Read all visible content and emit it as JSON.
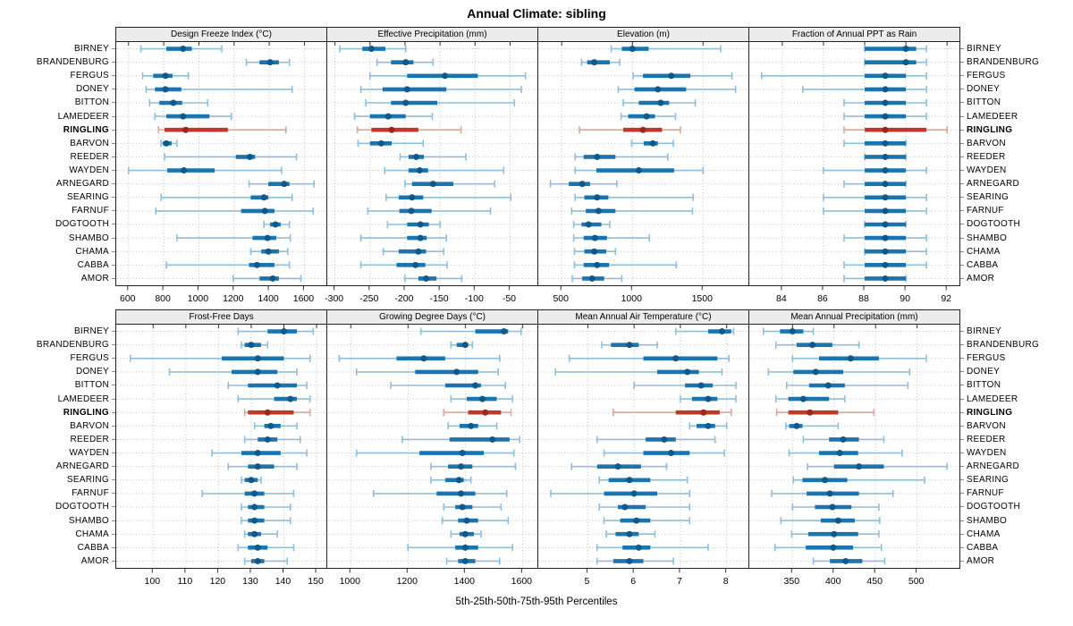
{
  "title": "Annual Climate: sibling",
  "caption": "5th-25th-50th-75th-95th Percentiles",
  "colors": {
    "normal": "#1b74ae",
    "normal_light": "#8fbedb",
    "normal_dot": "#11588a",
    "highlight": "#c0382c",
    "highlight_light": "#e0a49b",
    "highlight_dot": "#9c271d",
    "grid": "#c3c3c3",
    "panel_border": "#222222",
    "strip_bg": "#ececec",
    "tick": "#333333"
  },
  "chart_data": {
    "type": "scatter",
    "subtype": "percentile-range-dotplot",
    "title": "Annual Climate: sibling",
    "caption": "5th-25th-50th-75th-95th Percentiles",
    "percentile_labels": [
      "5th",
      "25th",
      "50th",
      "75th",
      "95th"
    ],
    "legend_position": "none",
    "grid": "dotted",
    "highlight_station": "RINGLING",
    "stations": [
      "BIRNEY",
      "BRANDENBURG",
      "FERGUS",
      "DONEY",
      "BITTON",
      "LAMEDEER",
      "RINGLING",
      "BARVON",
      "REEDER",
      "WAYDEN",
      "ARNEGARD",
      "SEARING",
      "FARNUF",
      "DOGTOOTH",
      "SHAMBO",
      "CHAMA",
      "CABBA",
      "AMOR"
    ],
    "panels": [
      {
        "title": "Design Freeze Index (°C)",
        "grid_row": "top",
        "xlim": [
          530,
          1725
        ],
        "ticks": [
          600,
          800,
          1000,
          1200,
          1400,
          1600
        ],
        "values": [
          [
            670,
            815,
            910,
            960,
            1130
          ],
          [
            1270,
            1345,
            1405,
            1455,
            1515
          ],
          [
            680,
            740,
            810,
            850,
            940
          ],
          [
            700,
            750,
            810,
            900,
            1530
          ],
          [
            720,
            775,
            855,
            905,
            1050
          ],
          [
            750,
            815,
            910,
            1060,
            1185
          ],
          [
            770,
            805,
            925,
            1165,
            1495
          ],
          [
            785,
            795,
            815,
            845,
            875
          ],
          [
            805,
            1210,
            1290,
            1320,
            1555
          ],
          [
            600,
            820,
            915,
            1090,
            1470
          ],
          [
            1285,
            1395,
            1485,
            1515,
            1655
          ],
          [
            785,
            1295,
            1370,
            1395,
            1530
          ],
          [
            755,
            1240,
            1375,
            1430,
            1650
          ],
          [
            1370,
            1405,
            1435,
            1465,
            1515
          ],
          [
            875,
            1305,
            1390,
            1440,
            1520
          ],
          [
            1295,
            1355,
            1395,
            1455,
            1505
          ],
          [
            815,
            1285,
            1330,
            1430,
            1515
          ],
          [
            1195,
            1345,
            1420,
            1455,
            1580
          ]
        ]
      },
      {
        "title": "Effective Precipitation (mm)",
        "grid_row": "top",
        "xlim": [
          -311,
          -11
        ],
        "ticks": [
          -300,
          -250,
          -200,
          -150,
          -100,
          -50
        ],
        "values": [
          [
            -293,
            -261,
            -248,
            -228,
            -199
          ],
          [
            -240,
            -220,
            -199,
            -188,
            -160
          ],
          [
            -250,
            -197,
            -143,
            -96,
            -28
          ],
          [
            -263,
            -232,
            -197,
            -141,
            -34
          ],
          [
            -256,
            -220,
            -199,
            -154,
            -44
          ],
          [
            -272,
            -250,
            -224,
            -199,
            -161
          ],
          [
            -268,
            -248,
            -219,
            -181,
            -120
          ],
          [
            -267,
            -250,
            -234,
            -219,
            -174
          ],
          [
            -207,
            -195,
            -184,
            -173,
            -113
          ],
          [
            -229,
            -195,
            -179,
            -167,
            -59
          ],
          [
            -200,
            -190,
            -160,
            -131,
            -72
          ],
          [
            -227,
            -209,
            -190,
            -174,
            -49
          ],
          [
            -253,
            -208,
            -191,
            -162,
            -78
          ],
          [
            -225,
            -197,
            -178,
            -166,
            -150
          ],
          [
            -263,
            -197,
            -178,
            -169,
            -141
          ],
          [
            -231,
            -209,
            -181,
            -170,
            -145
          ],
          [
            -263,
            -212,
            -185,
            -171,
            -140
          ],
          [
            -200,
            -181,
            -170,
            -155,
            -119
          ]
        ]
      },
      {
        "title": "Elevation (m)",
        "grid_row": "top",
        "xlim": [
          334,
          1821
        ],
        "ticks": [
          500,
          1000,
          1500
        ],
        "values": [
          [
            850,
            925,
            1000,
            1115,
            1625
          ],
          [
            640,
            680,
            730,
            840,
            910
          ],
          [
            1005,
            1075,
            1275,
            1410,
            1705
          ],
          [
            900,
            1015,
            1180,
            1380,
            1730
          ],
          [
            935,
            1045,
            1200,
            1260,
            1445
          ],
          [
            920,
            970,
            1100,
            1160,
            1305
          ],
          [
            625,
            935,
            1075,
            1210,
            1340
          ],
          [
            995,
            1080,
            1145,
            1180,
            1290
          ],
          [
            595,
            655,
            750,
            880,
            1250
          ],
          [
            595,
            745,
            1045,
            1295,
            1500
          ],
          [
            420,
            550,
            645,
            700,
            890
          ],
          [
            595,
            660,
            750,
            830,
            1430
          ],
          [
            570,
            670,
            760,
            880,
            1425
          ],
          [
            585,
            640,
            690,
            780,
            840
          ],
          [
            585,
            655,
            735,
            820,
            1120
          ],
          [
            590,
            660,
            730,
            815,
            880
          ],
          [
            590,
            655,
            750,
            835,
            1310
          ],
          [
            575,
            645,
            715,
            800,
            925
          ]
        ]
      },
      {
        "title": "Fraction of Annual PPT as Rain",
        "grid_row": "top",
        "xlim": [
          82.4,
          92.6
        ],
        "ticks": [
          84,
          86,
          88,
          90,
          92
        ],
        "values": [
          [
            88,
            88,
            90,
            90.5,
            91
          ],
          [
            88,
            88,
            90,
            90.5,
            91
          ],
          [
            83,
            88,
            89,
            90,
            91
          ],
          [
            85,
            88,
            89,
            90,
            91
          ],
          [
            87,
            88,
            89,
            90,
            91
          ],
          [
            87,
            88,
            89,
            90,
            91
          ],
          [
            87,
            88,
            89,
            91,
            92
          ],
          [
            87,
            88,
            89,
            90,
            90
          ],
          [
            88,
            88,
            89,
            90,
            90
          ],
          [
            86,
            88,
            89,
            90,
            91
          ],
          [
            87,
            88,
            89,
            90,
            90
          ],
          [
            86,
            88,
            89,
            90,
            91
          ],
          [
            86,
            88,
            89,
            90,
            91
          ],
          [
            88,
            88,
            89,
            90,
            90
          ],
          [
            87,
            88,
            89,
            90,
            91
          ],
          [
            88,
            88,
            89,
            90,
            91
          ],
          [
            87,
            88,
            89,
            90,
            91
          ],
          [
            87,
            88,
            89,
            90,
            90
          ]
        ]
      },
      {
        "title": "Frost-Free Days",
        "grid_row": "bottom",
        "xlim": [
          88.7,
          153
        ],
        "ticks": [
          100,
          110,
          120,
          130,
          140,
          150
        ],
        "values": [
          [
            126,
            135,
            140,
            144,
            149
          ],
          [
            127,
            128,
            130,
            133,
            135
          ],
          [
            93,
            121,
            132,
            140,
            148
          ],
          [
            105,
            124,
            132,
            138,
            144
          ],
          [
            123,
            129,
            138,
            144,
            147
          ],
          [
            126,
            137,
            142,
            144,
            148
          ],
          [
            128,
            129,
            135,
            143,
            148
          ],
          [
            131,
            134,
            136,
            139,
            144
          ],
          [
            128,
            132,
            135,
            138,
            145
          ],
          [
            118,
            127,
            132,
            139,
            147
          ],
          [
            123,
            129,
            132,
            137,
            144
          ],
          [
            127,
            128,
            130,
            132,
            133
          ],
          [
            115,
            128,
            131,
            134,
            143
          ],
          [
            127,
            129,
            131,
            134,
            142
          ],
          [
            127,
            129,
            131,
            134,
            142
          ],
          [
            128,
            129,
            131,
            133,
            138
          ],
          [
            126,
            129,
            132,
            135,
            143
          ],
          [
            128,
            130,
            132,
            134,
            141
          ]
        ]
      },
      {
        "title": "Growing Degree Days (°C)",
        "grid_row": "bottom",
        "xlim": [
          918,
          1652
        ],
        "ticks": [
          1000,
          1200,
          1400,
          1600
        ],
        "values": [
          [
            1245,
            1435,
            1535,
            1550,
            1595
          ],
          [
            1350,
            1370,
            1400,
            1410,
            1425
          ],
          [
            960,
            1160,
            1255,
            1330,
            1520
          ],
          [
            1020,
            1225,
            1370,
            1445,
            1515
          ],
          [
            1140,
            1330,
            1435,
            1455,
            1540
          ],
          [
            1350,
            1405,
            1460,
            1510,
            1565
          ],
          [
            1325,
            1410,
            1470,
            1525,
            1560
          ],
          [
            1340,
            1380,
            1420,
            1445,
            1510
          ],
          [
            1180,
            1345,
            1495,
            1555,
            1590
          ],
          [
            1020,
            1240,
            1390,
            1465,
            1570
          ],
          [
            1280,
            1340,
            1385,
            1425,
            1575
          ],
          [
            1280,
            1330,
            1378,
            1395,
            1420
          ],
          [
            1080,
            1300,
            1385,
            1435,
            1545
          ],
          [
            1325,
            1365,
            1390,
            1425,
            1525
          ],
          [
            1320,
            1375,
            1405,
            1445,
            1550
          ],
          [
            1350,
            1380,
            1400,
            1430,
            1455
          ],
          [
            1200,
            1365,
            1400,
            1445,
            1565
          ],
          [
            1335,
            1375,
            1400,
            1435,
            1520
          ]
        ]
      },
      {
        "title": "Mean Annual Air Temperature (°C)",
        "grid_row": "bottom",
        "xlim": [
          3.93,
          8.47
        ],
        "ticks": [
          5,
          6,
          7,
          8
        ],
        "values": [
          [
            6.9,
            7.6,
            7.9,
            8.1,
            8.15
          ],
          [
            5.3,
            5.5,
            5.9,
            6.1,
            6.5
          ],
          [
            4.6,
            6.2,
            6.9,
            7.8,
            8.05
          ],
          [
            4.3,
            6.5,
            7.15,
            7.4,
            7.9
          ],
          [
            6.0,
            7.1,
            7.45,
            7.7,
            8.2
          ],
          [
            7.0,
            7.25,
            7.6,
            7.8,
            8.2
          ],
          [
            5.55,
            6.9,
            7.5,
            7.85,
            8.1
          ],
          [
            7.2,
            7.35,
            7.6,
            7.75,
            8.0
          ],
          [
            5.2,
            6.25,
            6.65,
            6.9,
            7.75
          ],
          [
            5.35,
            6.2,
            6.8,
            7.2,
            7.95
          ],
          [
            4.65,
            5.2,
            5.65,
            6.15,
            6.7
          ],
          [
            5.25,
            5.45,
            5.9,
            6.35,
            7.15
          ],
          [
            4.2,
            5.35,
            6.0,
            6.5,
            7.2
          ],
          [
            5.25,
            5.65,
            5.8,
            6.25,
            7.2
          ],
          [
            5.35,
            5.7,
            6.05,
            6.35,
            7.2
          ],
          [
            5.4,
            5.6,
            5.9,
            6.1,
            6.45
          ],
          [
            5.2,
            5.75,
            6.1,
            6.35,
            7.6
          ],
          [
            5.2,
            5.55,
            5.9,
            6.2,
            6.85
          ]
        ]
      },
      {
        "title": "Mean Annual Precipitation (mm)",
        "grid_row": "bottom",
        "xlim": [
          298,
          551
        ],
        "ticks": [
          350,
          400,
          450,
          500
        ],
        "values": [
          [
            315,
            335,
            350,
            363,
            375
          ],
          [
            330,
            355,
            374,
            398,
            430
          ],
          [
            350,
            382,
            420,
            454,
            511
          ],
          [
            321,
            351,
            378,
            411,
            491
          ],
          [
            343,
            370,
            393,
            413,
            489
          ],
          [
            330,
            345,
            363,
            394,
            413
          ],
          [
            331,
            345,
            371,
            405,
            448
          ],
          [
            342,
            346,
            355,
            362,
            405
          ],
          [
            363,
            394,
            411,
            430,
            460
          ],
          [
            346,
            382,
            407,
            429,
            482
          ],
          [
            368,
            400,
            430,
            460,
            536
          ],
          [
            351,
            362,
            389,
            416,
            509
          ],
          [
            325,
            367,
            395,
            430,
            471
          ],
          [
            350,
            377,
            398,
            421,
            454
          ],
          [
            336,
            384,
            405,
            425,
            455
          ],
          [
            349,
            369,
            400,
            429,
            454
          ],
          [
            329,
            366,
            399,
            423,
            457
          ],
          [
            375,
            395,
            414,
            434,
            461
          ]
        ]
      }
    ]
  }
}
